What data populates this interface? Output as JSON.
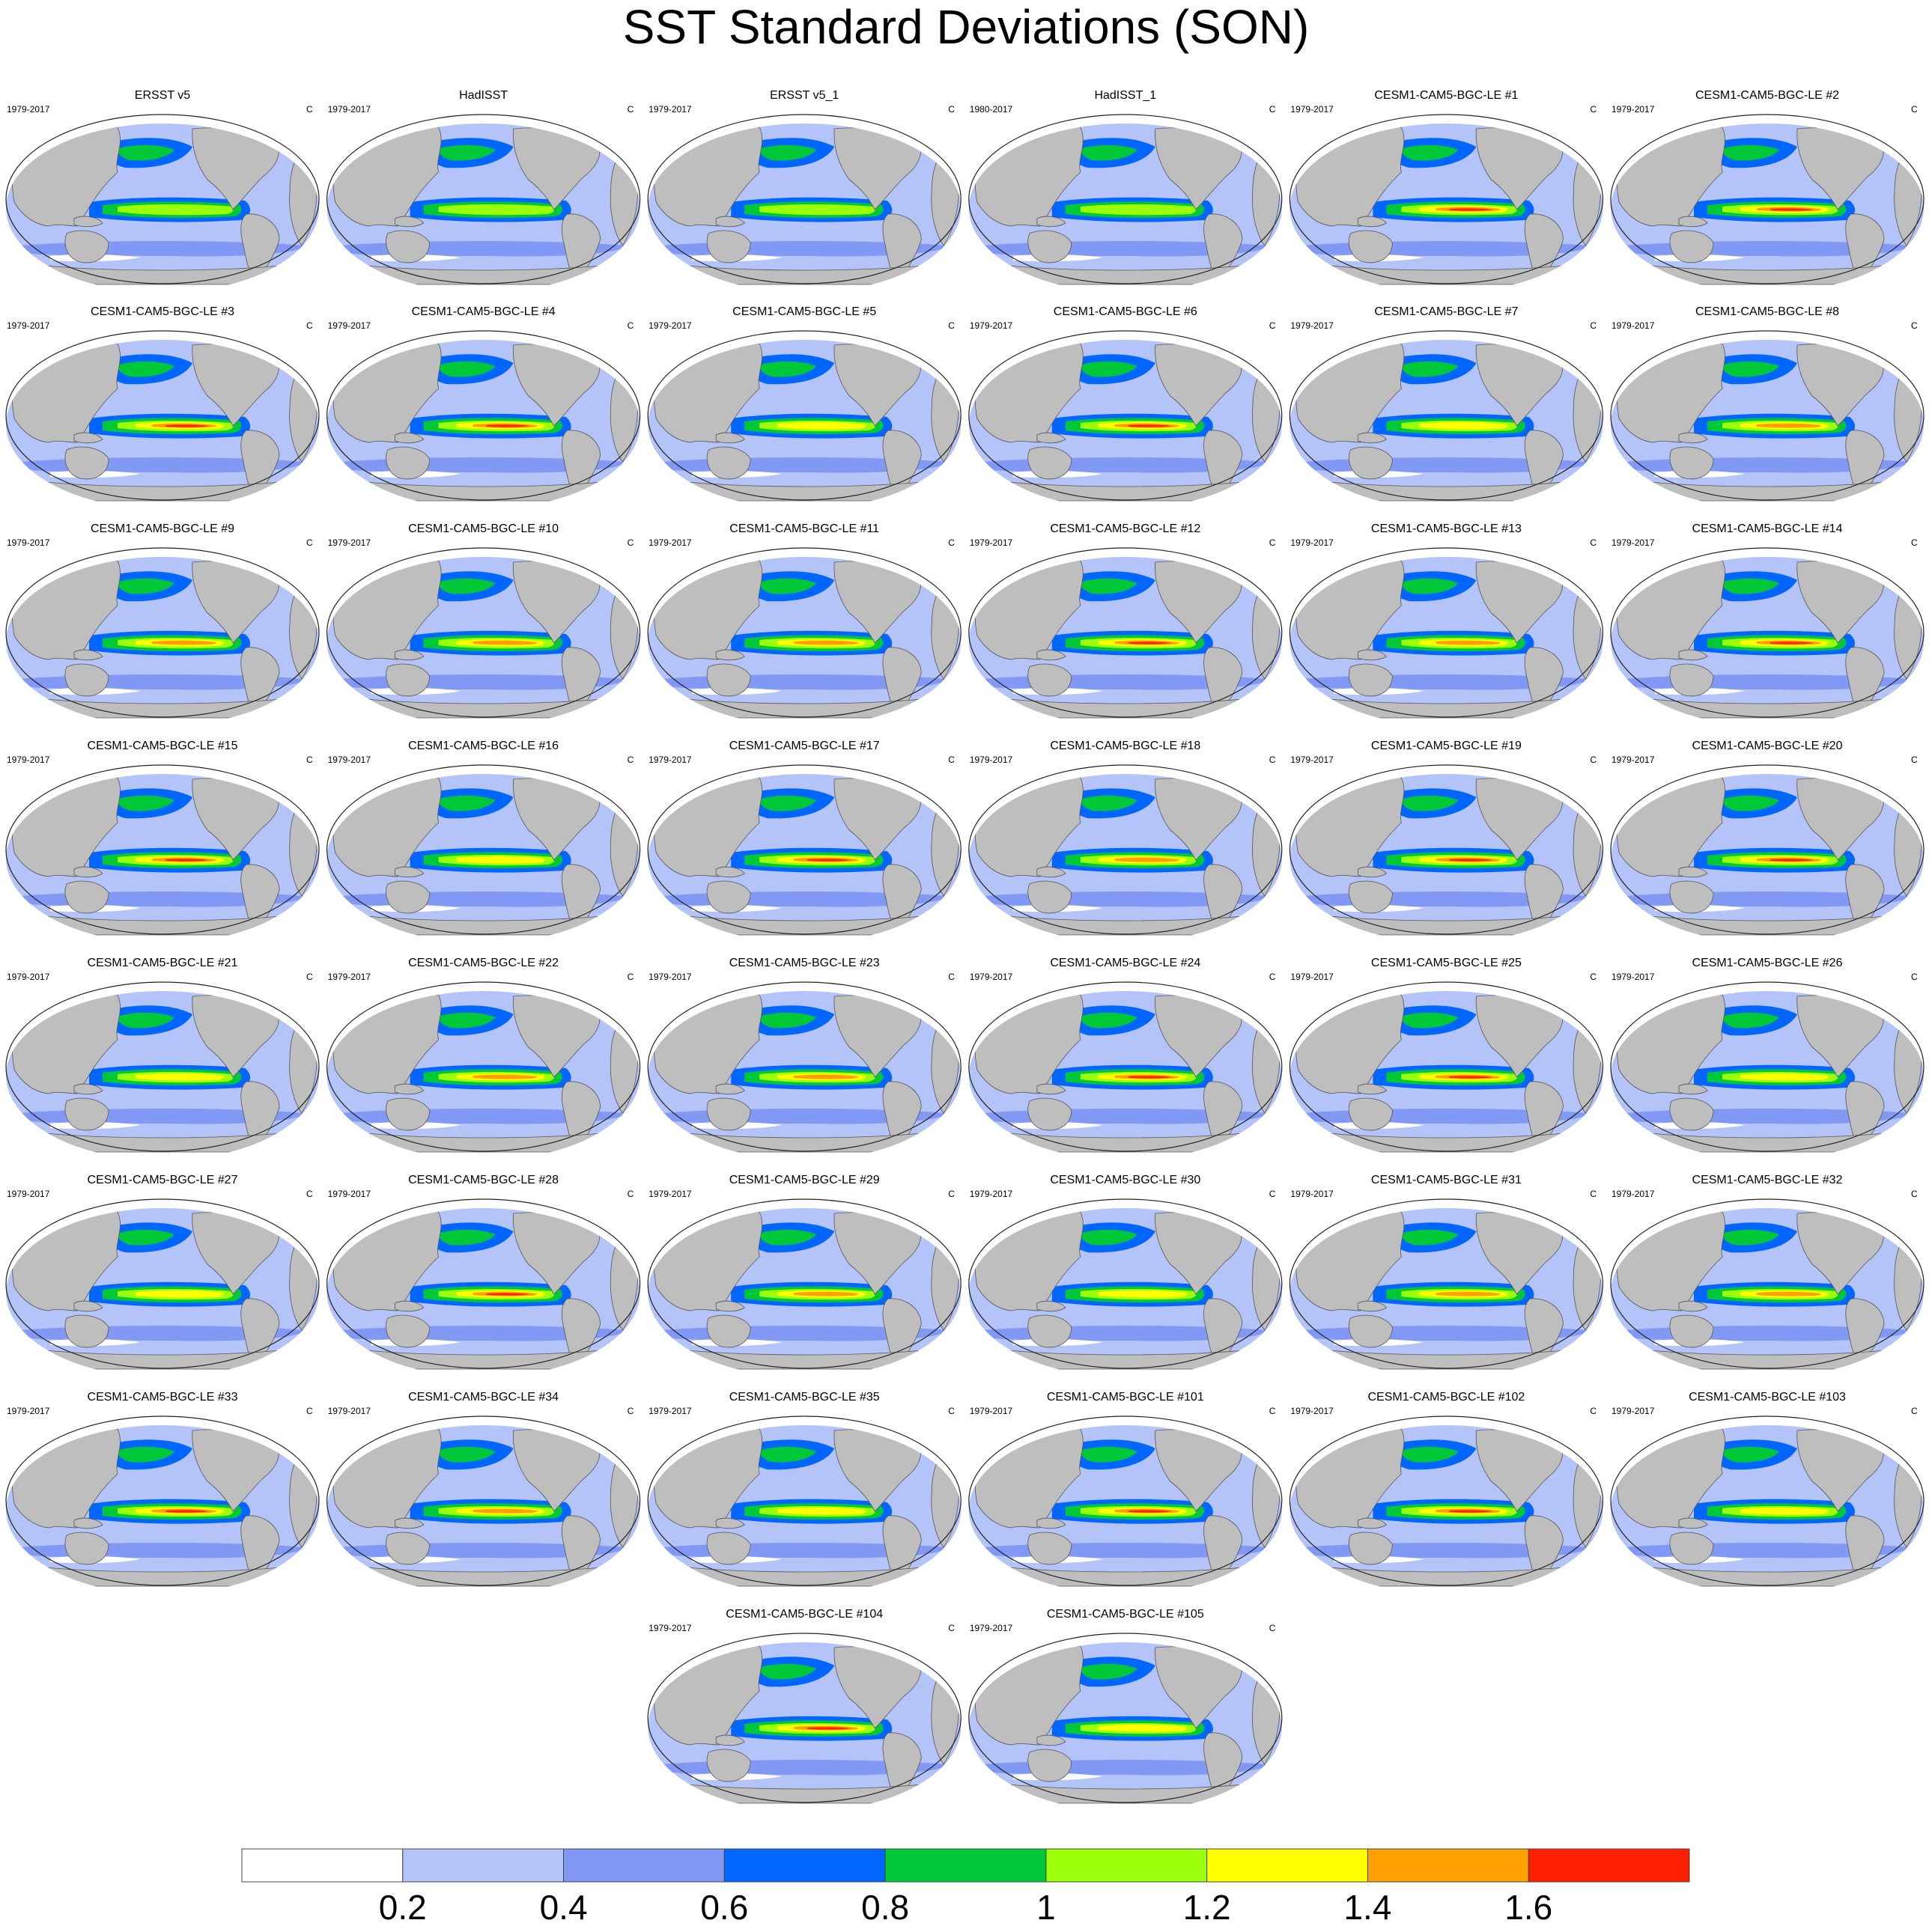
{
  "figure": {
    "title": "SST Standard Deviations (SON)"
  },
  "colorbar": {
    "colors": [
      "#ffffff",
      "#b4c3f8",
      "#8199f5",
      "#0066ff",
      "#00c837",
      "#9bff0a",
      "#ffff00",
      "#ffa000",
      "#ff2000"
    ],
    "tick_labels": [
      "0.2",
      "0.4",
      "0.6",
      "0.8",
      "1",
      "1.2",
      "1.4",
      "1.6"
    ]
  },
  "chart_data": {
    "type": "heatmap",
    "title": "SST Standard Deviations (SON)",
    "units": "C",
    "levels": [
      0.2,
      0.4,
      0.6,
      0.8,
      1.0,
      1.2,
      1.4,
      1.6
    ],
    "palette": [
      "#ffffff",
      "#b4c3f8",
      "#8199f5",
      "#0066ff",
      "#00c837",
      "#9bff0a",
      "#ffff00",
      "#ffa000",
      "#ff2000"
    ],
    "land_color": "#bebebe",
    "panels": [
      {
        "name": "ERSST v5",
        "period": "1979-2017",
        "units": "C",
        "nino_peak": 1.1
      },
      {
        "name": "HadISST",
        "period": "1979-2017",
        "units": "C",
        "nino_peak": 1.1
      },
      {
        "name": "ERSST v5_1",
        "period": "1979-2017",
        "units": "C",
        "nino_peak": 1.1
      },
      {
        "name": "HadISST_1",
        "period": "1980-2017",
        "units": "C",
        "nino_peak": 1.1
      },
      {
        "name": "CESM1-CAM5-BGC-LE #1",
        "period": "1979-2017",
        "units": "C",
        "nino_peak": 1.7
      },
      {
        "name": "CESM1-CAM5-BGC-LE #2",
        "period": "1979-2017",
        "units": "C",
        "nino_peak": 1.7
      },
      {
        "name": "CESM1-CAM5-BGC-LE #3",
        "period": "1979-2017",
        "units": "C",
        "nino_peak": 1.7
      },
      {
        "name": "CESM1-CAM5-BGC-LE #4",
        "period": "1979-2017",
        "units": "C",
        "nino_peak": 1.7
      },
      {
        "name": "CESM1-CAM5-BGC-LE #5",
        "period": "1979-2017",
        "units": "C",
        "nino_peak": 1.3
      },
      {
        "name": "CESM1-CAM5-BGC-LE #6",
        "period": "1979-2017",
        "units": "C",
        "nino_peak": 1.7
      },
      {
        "name": "CESM1-CAM5-BGC-LE #7",
        "period": "1979-2017",
        "units": "C",
        "nino_peak": 1.3
      },
      {
        "name": "CESM1-CAM5-BGC-LE #8",
        "period": "1979-2017",
        "units": "C",
        "nino_peak": 1.5
      },
      {
        "name": "CESM1-CAM5-BGC-LE #9",
        "period": "1979-2017",
        "units": "C",
        "nino_peak": 1.5
      },
      {
        "name": "CESM1-CAM5-BGC-LE #10",
        "period": "1979-2017",
        "units": "C",
        "nino_peak": 1.5
      },
      {
        "name": "CESM1-CAM5-BGC-LE #11",
        "period": "1979-2017",
        "units": "C",
        "nino_peak": 1.5
      },
      {
        "name": "CESM1-CAM5-BGC-LE #12",
        "period": "1979-2017",
        "units": "C",
        "nino_peak": 1.7
      },
      {
        "name": "CESM1-CAM5-BGC-LE #13",
        "period": "1979-2017",
        "units": "C",
        "nino_peak": 1.5
      },
      {
        "name": "CESM1-CAM5-BGC-LE #14",
        "period": "1979-2017",
        "units": "C",
        "nino_peak": 1.7
      },
      {
        "name": "CESM1-CAM5-BGC-LE #15",
        "period": "1979-2017",
        "units": "C",
        "nino_peak": 1.7
      },
      {
        "name": "CESM1-CAM5-BGC-LE #16",
        "period": "1979-2017",
        "units": "C",
        "nino_peak": 1.3
      },
      {
        "name": "CESM1-CAM5-BGC-LE #17",
        "period": "1979-2017",
        "units": "C",
        "nino_peak": 1.7
      },
      {
        "name": "CESM1-CAM5-BGC-LE #18",
        "period": "1979-2017",
        "units": "C",
        "nino_peak": 1.5
      },
      {
        "name": "CESM1-CAM5-BGC-LE #19",
        "period": "1979-2017",
        "units": "C",
        "nino_peak": 1.7
      },
      {
        "name": "CESM1-CAM5-BGC-LE #20",
        "period": "1979-2017",
        "units": "C",
        "nino_peak": 1.7
      },
      {
        "name": "CESM1-CAM5-BGC-LE #21",
        "period": "1979-2017",
        "units": "C",
        "nino_peak": 1.3
      },
      {
        "name": "CESM1-CAM5-BGC-LE #22",
        "period": "1979-2017",
        "units": "C",
        "nino_peak": 1.5
      },
      {
        "name": "CESM1-CAM5-BGC-LE #23",
        "period": "1979-2017",
        "units": "C",
        "nino_peak": 1.5
      },
      {
        "name": "CESM1-CAM5-BGC-LE #24",
        "period": "1979-2017",
        "units": "C",
        "nino_peak": 1.7
      },
      {
        "name": "CESM1-CAM5-BGC-LE #25",
        "period": "1979-2017",
        "units": "C",
        "nino_peak": 1.7
      },
      {
        "name": "CESM1-CAM5-BGC-LE #26",
        "period": "1979-2017",
        "units": "C",
        "nino_peak": 1.3
      },
      {
        "name": "CESM1-CAM5-BGC-LE #27",
        "period": "1979-2017",
        "units": "C",
        "nino_peak": 1.3
      },
      {
        "name": "CESM1-CAM5-BGC-LE #28",
        "period": "1979-2017",
        "units": "C",
        "nino_peak": 1.7
      },
      {
        "name": "CESM1-CAM5-BGC-LE #29",
        "period": "1979-2017",
        "units": "C",
        "nino_peak": 1.5
      },
      {
        "name": "CESM1-CAM5-BGC-LE #30",
        "period": "1979-2017",
        "units": "C",
        "nino_peak": 1.3
      },
      {
        "name": "CESM1-CAM5-BGC-LE #31",
        "period": "1979-2017",
        "units": "C",
        "nino_peak": 1.5
      },
      {
        "name": "CESM1-CAM5-BGC-LE #32",
        "period": "1979-2017",
        "units": "C",
        "nino_peak": 1.5
      },
      {
        "name": "CESM1-CAM5-BGC-LE #33",
        "period": "1979-2017",
        "units": "C",
        "nino_peak": 1.7
      },
      {
        "name": "CESM1-CAM5-BGC-LE #34",
        "period": "1979-2017",
        "units": "C",
        "nino_peak": 1.5
      },
      {
        "name": "CESM1-CAM5-BGC-LE #35",
        "period": "1979-2017",
        "units": "C",
        "nino_peak": 1.3
      },
      {
        "name": "CESM1-CAM5-BGC-LE #101",
        "period": "1979-2017",
        "units": "C",
        "nino_peak": 1.7
      },
      {
        "name": "CESM1-CAM5-BGC-LE #102",
        "period": "1979-2017",
        "units": "C",
        "nino_peak": 1.7
      },
      {
        "name": "CESM1-CAM5-BGC-LE #103",
        "period": "1979-2017",
        "units": "C",
        "nino_peak": 1.3
      },
      {
        "name": "CESM1-CAM5-BGC-LE #104",
        "period": "1979-2017",
        "units": "C",
        "nino_peak": 1.7
      },
      {
        "name": "CESM1-CAM5-BGC-LE #105",
        "period": "1979-2017",
        "units": "C",
        "nino_peak": 1.3
      }
    ]
  }
}
